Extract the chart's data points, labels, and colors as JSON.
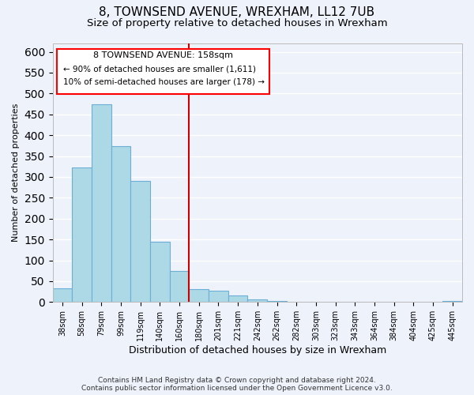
{
  "title": "8, TOWNSEND AVENUE, WREXHAM, LL12 7UB",
  "subtitle": "Size of property relative to detached houses in Wrexham",
  "xlabel": "Distribution of detached houses by size in Wrexham",
  "ylabel": "Number of detached properties",
  "bar_labels": [
    "38sqm",
    "58sqm",
    "79sqm",
    "99sqm",
    "119sqm",
    "140sqm",
    "160sqm",
    "180sqm",
    "201sqm",
    "221sqm",
    "242sqm",
    "262sqm",
    "282sqm",
    "303sqm",
    "323sqm",
    "343sqm",
    "364sqm",
    "384sqm",
    "404sqm",
    "425sqm",
    "445sqm"
  ],
  "bar_values": [
    32,
    322,
    474,
    374,
    291,
    145,
    75,
    31,
    28,
    16,
    7,
    2,
    1,
    0,
    0,
    0,
    0,
    0,
    0,
    0,
    2
  ],
  "bar_color": "#add8e6",
  "bar_edge_color": "#6baed6",
  "vline_x": 6.5,
  "vline_color": "#cc0000",
  "annotation_box_title": "8 TOWNSEND AVENUE: 158sqm",
  "annotation_line1": "← 90% of detached houses are smaller (1,611)",
  "annotation_line2": "10% of semi-detached houses are larger (178) →",
  "ylim": [
    0,
    620
  ],
  "yticks": [
    0,
    50,
    100,
    150,
    200,
    250,
    300,
    350,
    400,
    450,
    500,
    550,
    600
  ],
  "footer1": "Contains HM Land Registry data © Crown copyright and database right 2024.",
  "footer2": "Contains public sector information licensed under the Open Government Licence v3.0.",
  "background_color": "#eef2fb",
  "plot_bg_color": "#eef2fb",
  "grid_color": "white",
  "title_fontsize": 11,
  "subtitle_fontsize": 9.5,
  "xlabel_fontsize": 9,
  "ylabel_fontsize": 8,
  "footer_fontsize": 6.5
}
